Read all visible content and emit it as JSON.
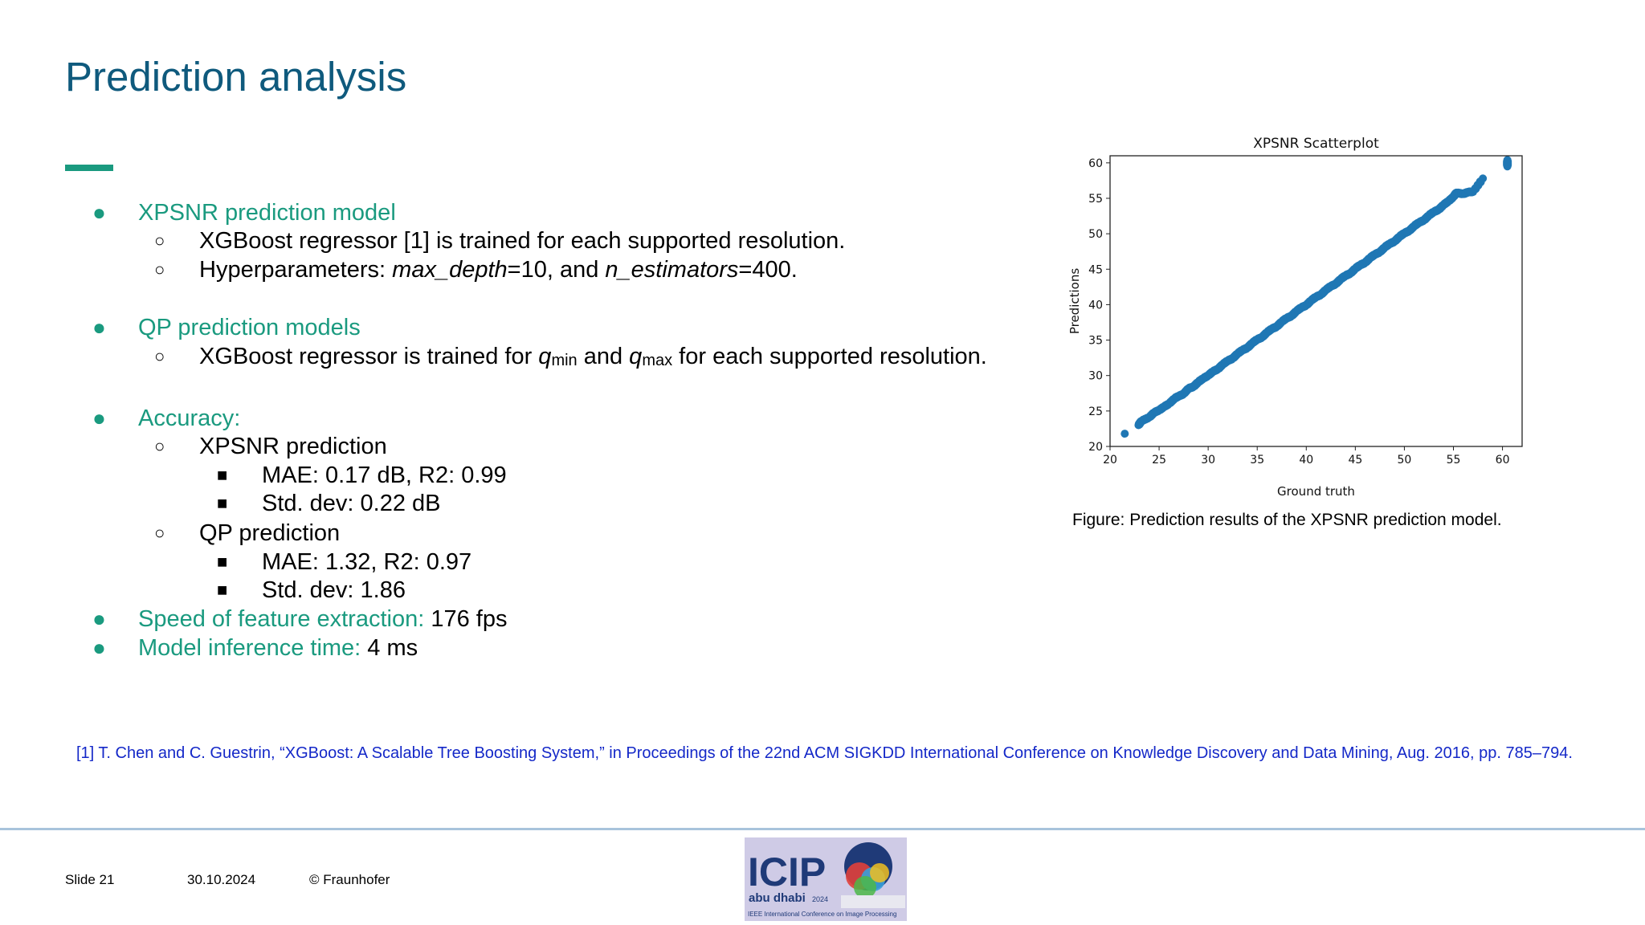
{
  "slide": {
    "title": "Prediction analysis",
    "bullets": {
      "b1_heading": "XPSNR prediction model",
      "b1_sub1": "XGBoost regressor [1] is trained for each supported resolution.",
      "b1_sub2_prefix": "Hyperparameters:  ",
      "b1_sub2_p1": "max_depth",
      "b1_sub2_v1": "=10, and ",
      "b1_sub2_p2": "n_estimators",
      "b1_sub2_v2": "=400.",
      "b2_heading": "QP prediction models",
      "b2_sub1_a": "XGBoost regressor is trained for ",
      "b2_q": "q",
      "b2_min": "min",
      "b2_and": " and ",
      "b2_max": "max",
      "b2_sub1_b": " for each supported resolution.",
      "b3_heading": "Accuracy:",
      "b3_sub1": "XPSNR prediction",
      "b3_sub1_i1": "MAE: 0.17 dB, R2: 0.99",
      "b3_sub1_i2": "Std. dev: 0.22 dB",
      "b3_sub2": "QP prediction",
      "b3_sub2_i1": "MAE: 1.32, R2: 0.97",
      "b3_sub2_i2": "Std. dev: 1.86",
      "b4_label": "Speed of feature extraction:",
      "b4_value": " 176 fps",
      "b5_label": "Model inference time:",
      "b5_value": " 4 ms"
    },
    "figure_caption": "Figure: Prediction results of the XPSNR prediction model.",
    "reference": "[1] T. Chen and C. Guestrin, “XGBoost: A Scalable Tree Boosting System,” in Proceedings of the 22nd ACM SIGKDD International Conference on Knowledge Discovery and Data Mining, Aug. 2016, pp. 785–794.",
    "footer": {
      "slide_no": "Slide 21",
      "date": "30.10.2024",
      "copyright": "© Fraunhofer"
    },
    "logo": {
      "text": "ICIP",
      "city": "abu dhabi",
      "year": "2024",
      "tagline": "IEEE International Conference on Image Processing"
    }
  },
  "colors": {
    "title": "#0f5a7d",
    "accent": "#1a9a7f",
    "point": "#1f77b4",
    "reference": "#1428c8"
  },
  "chart_data": {
    "type": "scatter",
    "title": "XPSNR Scatterplot",
    "xlabel": "Ground truth",
    "ylabel": "Predictions",
    "xlim": [
      20,
      62
    ],
    "ylim": [
      20,
      61
    ],
    "xticks": [
      20,
      25,
      30,
      35,
      40,
      45,
      50,
      55,
      60
    ],
    "yticks": [
      20,
      25,
      30,
      35,
      40,
      45,
      50,
      55,
      60
    ],
    "grid": false,
    "points": [
      [
        21.5,
        21.8
      ],
      [
        22.9,
        23.0
      ],
      [
        23.2,
        23.6
      ],
      [
        24.0,
        24.1
      ],
      [
        24.5,
        24.8
      ],
      [
        25.0,
        25.1
      ],
      [
        25.5,
        25.6
      ],
      [
        26.0,
        26.0
      ],
      [
        26.6,
        26.8
      ],
      [
        27.0,
        27.1
      ],
      [
        27.5,
        27.4
      ],
      [
        28.0,
        28.2
      ],
      [
        28.5,
        28.4
      ],
      [
        29.0,
        29.1
      ],
      [
        29.5,
        29.6
      ],
      [
        30.0,
        30.0
      ],
      [
        30.5,
        30.6
      ],
      [
        31.0,
        30.9
      ],
      [
        31.5,
        31.6
      ],
      [
        32.0,
        32.1
      ],
      [
        32.5,
        32.4
      ],
      [
        33.0,
        33.1
      ],
      [
        33.5,
        33.6
      ],
      [
        34.0,
        33.9
      ],
      [
        34.5,
        34.6
      ],
      [
        35.0,
        35.1
      ],
      [
        35.5,
        35.4
      ],
      [
        36.0,
        36.1
      ],
      [
        36.5,
        36.6
      ],
      [
        37.0,
        36.9
      ],
      [
        37.5,
        37.6
      ],
      [
        38.0,
        38.1
      ],
      [
        38.5,
        38.4
      ],
      [
        39.0,
        39.1
      ],
      [
        39.5,
        39.6
      ],
      [
        40.0,
        39.9
      ],
      [
        40.5,
        40.6
      ],
      [
        41.0,
        41.1
      ],
      [
        41.5,
        41.4
      ],
      [
        42.0,
        42.1
      ],
      [
        42.5,
        42.6
      ],
      [
        43.0,
        42.9
      ],
      [
        43.5,
        43.6
      ],
      [
        44.0,
        44.1
      ],
      [
        44.5,
        44.4
      ],
      [
        45.0,
        45.1
      ],
      [
        45.5,
        45.6
      ],
      [
        46.0,
        45.9
      ],
      [
        46.5,
        46.6
      ],
      [
        47.0,
        47.1
      ],
      [
        47.5,
        47.4
      ],
      [
        48.0,
        48.1
      ],
      [
        48.5,
        48.6
      ],
      [
        49.0,
        48.9
      ],
      [
        49.5,
        49.6
      ],
      [
        50.0,
        50.1
      ],
      [
        50.5,
        50.4
      ],
      [
        51.0,
        51.1
      ],
      [
        51.5,
        51.6
      ],
      [
        52.0,
        51.9
      ],
      [
        52.5,
        52.6
      ],
      [
        53.0,
        53.1
      ],
      [
        53.5,
        53.4
      ],
      [
        54.0,
        54.1
      ],
      [
        54.5,
        54.6
      ],
      [
        55.0,
        55.2
      ],
      [
        55.3,
        55.8
      ],
      [
        56.0,
        55.6
      ],
      [
        56.5,
        55.9
      ],
      [
        57.0,
        55.9
      ],
      [
        58.0,
        57.8
      ],
      [
        60.5,
        59.5
      ],
      [
        60.5,
        60.4
      ]
    ]
  }
}
